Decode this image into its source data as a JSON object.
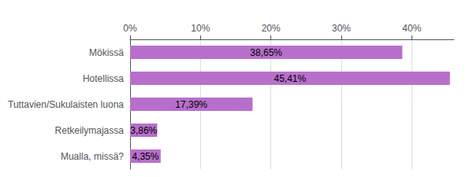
{
  "chart_data": {
    "type": "bar",
    "orientation": "horizontal",
    "categories": [
      "Mualla, missä?",
      "Retkeilymajassa",
      "Tuttavien/Sukulaisten luona",
      "Hotellissa",
      "Mökissä"
    ],
    "values": [
      4.35,
      3.86,
      17.39,
      45.41,
      38.65
    ],
    "value_labels": [
      "4,35%",
      "3,86%",
      "17,39%",
      "45,41%",
      "38,65%"
    ],
    "data_labels": true,
    "color": "#b86fcc",
    "xlim": [
      0,
      46
    ],
    "xticks": [
      {
        "value": 0,
        "label": "0%"
      },
      {
        "value": 10,
        "label": "10%"
      },
      {
        "value": 20,
        "label": "20%"
      },
      {
        "value": 30,
        "label": "30%"
      },
      {
        "value": 40,
        "label": "40%"
      }
    ],
    "grid": true
  }
}
